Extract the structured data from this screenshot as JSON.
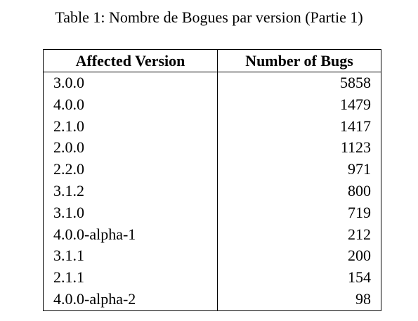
{
  "caption": "Table 1: Nombre de Bogues par version (Partie 1)",
  "table": {
    "headers": [
      "Affected Version",
      "Number of Bugs"
    ],
    "rows": [
      [
        "3.0.0",
        "5858"
      ],
      [
        "4.0.0",
        "1479"
      ],
      [
        "2.1.0",
        "1417"
      ],
      [
        "2.0.0",
        "1123"
      ],
      [
        "2.2.0",
        "971"
      ],
      [
        "3.1.2",
        "800"
      ],
      [
        "3.1.0",
        "719"
      ],
      [
        "4.0.0-alpha-1",
        "212"
      ],
      [
        "3.1.1",
        "200"
      ],
      [
        "2.1.1",
        "154"
      ],
      [
        "4.0.0-alpha-2",
        "98"
      ]
    ]
  }
}
